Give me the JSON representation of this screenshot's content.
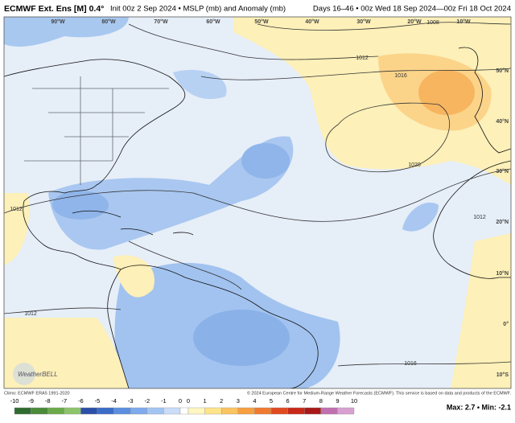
{
  "header": {
    "title": "ECMWF Ext. Ens [M] 0.4°",
    "subtitle": "Init 00z 2 Sep 2024 • MSLP (mb) and Anomaly (mb)",
    "valid": "Days 16–46 • 00z Wed 18 Sep 2024—00z Fri 18 Oct 2024"
  },
  "longitude_labels": [
    "90°W",
    "80°W",
    "70°W",
    "60°W",
    "50°W",
    "40°W",
    "30°W",
    "20°W",
    "10°W"
  ],
  "latitude_labels": [
    "50°N",
    "40°N",
    "30°N",
    "20°N",
    "10°N",
    "0°",
    "10°S"
  ],
  "isobar_labels": [
    "1008",
    "1012",
    "1016",
    "1020",
    "1012",
    "1012",
    "1016",
    "1012"
  ],
  "logo": "WeatherBELL",
  "footer": {
    "climo": "Climo: ECMWF ERA5 1991-2020",
    "copyright": "© 2024 European Centre for Medium-Range Weather Forecasts (ECMWF). This service is based on data and products of the ECMWF.",
    "max_min": "Max: 2.7 • Min: -2.1"
  },
  "colorbar": {
    "labels": [
      "-10",
      "-9",
      "-8",
      "-7",
      "-6",
      "-5",
      "-4",
      "-3",
      "-2",
      "-1",
      "0",
      "0",
      "1",
      "2",
      "3",
      "4",
      "5",
      "6",
      "7",
      "8",
      "9",
      "10"
    ]
  }
}
